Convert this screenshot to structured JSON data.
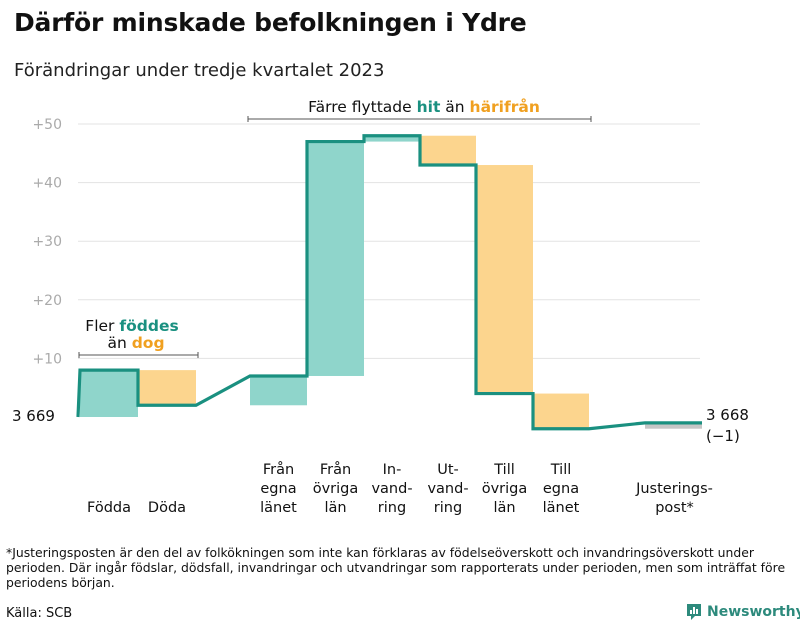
{
  "title": "Därför minskade befolkningen i Ydre",
  "subtitle": "Förändringar under tredje kvartalet 2023",
  "footnote": "*Justeringsposten är den del av folkökningen som inte kan förklaras av födelseöverskott och invandringsöverskott under perioden. Där ingår födslar, dödsfall, invandringar och utvandringar som rapporterats under perioden, men som inträffat före periodens början.",
  "source": "Källa: SCB",
  "logo_text": "Newsworthy",
  "colors": {
    "increase": "#8fd5cb",
    "decrease": "#fcd58e",
    "line": "#1a9080",
    "adjustment": "#c6c6c6",
    "hit": "#1a9080",
    "harifran": "#f0a020"
  },
  "chart_data": {
    "type": "bar",
    "subtype": "waterfall",
    "start_value": 3669,
    "start_label": "3 669",
    "end_label": "3 668",
    "end_change_label": "(−1)",
    "y_ticks": [
      "+10",
      "+20",
      "+30",
      "+40",
      "+50"
    ],
    "ylim": [
      -2,
      52
    ],
    "steps": [
      {
        "label": [
          "Födda"
        ],
        "value": 8,
        "kind": "increase"
      },
      {
        "label": [
          "Döda"
        ],
        "value": -6,
        "kind": "decrease"
      },
      {
        "label": [
          "Från",
          "egna",
          "länet"
        ],
        "value": 5,
        "kind": "increase"
      },
      {
        "label": [
          "Från",
          "övriga",
          "län"
        ],
        "value": 40,
        "kind": "increase"
      },
      {
        "label": [
          "In-",
          "vand-",
          "ring"
        ],
        "value": 1,
        "kind": "increase"
      },
      {
        "label": [
          "Ut-",
          "vand-",
          "ring"
        ],
        "value": -5,
        "kind": "decrease"
      },
      {
        "label": [
          "Till",
          "övriga",
          "län"
        ],
        "value": -39,
        "kind": "decrease"
      },
      {
        "label": [
          "Till",
          "egna",
          "länet"
        ],
        "value": -6,
        "kind": "decrease"
      },
      {
        "label": [
          "Justerings-",
          "post*"
        ],
        "value": 1,
        "kind": "adjustment"
      }
    ],
    "annotations": [
      {
        "id": "births",
        "line1": [
          {
            "text": "Fler ",
            "hl": false
          },
          {
            "text": "föddes",
            "hl": "increase"
          }
        ],
        "line2": [
          {
            "text": "än ",
            "hl": false
          },
          {
            "text": "dog",
            "hl": "decrease"
          }
        ]
      },
      {
        "id": "moves",
        "line1": [
          {
            "text": "Färre flyttade ",
            "hl": false
          },
          {
            "text": "hit",
            "hl": "increase"
          },
          {
            "text": " än ",
            "hl": false
          },
          {
            "text": "härifrån",
            "hl": "decrease"
          }
        ]
      }
    ]
  }
}
